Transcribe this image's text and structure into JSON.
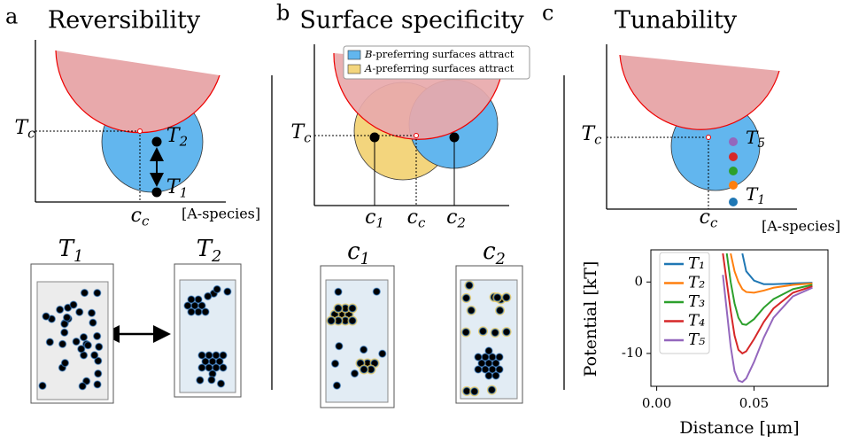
{
  "panels": [
    {
      "letter": "a",
      "title": "Reversibility",
      "critical_temperature": {
        "main": "T",
        "sub": "c"
      },
      "critical_concentration": {
        "main": "c",
        "sub": "c"
      },
      "x_axis_label": "[A-species]",
      "state_labels": [
        {
          "main": "T",
          "sub": "2"
        },
        {
          "main": "T",
          "sub": "1"
        }
      ],
      "snapshot_labels": [
        {
          "main": "T",
          "sub": "1"
        },
        {
          "main": "T",
          "sub": "2"
        }
      ]
    },
    {
      "letter": "b",
      "title": "Surface specificity",
      "legend": [
        {
          "italic": "B",
          "text": "-preferring surfaces attract"
        },
        {
          "italic": "A",
          "text": "-preferring surfaces attract"
        }
      ],
      "critical_temperature": {
        "main": "T",
        "sub": "c"
      },
      "concentration_labels": [
        {
          "main": "c",
          "sub": "1"
        },
        {
          "main": "c",
          "sub": "c"
        },
        {
          "main": "c",
          "sub": "2"
        }
      ],
      "snapshot_labels": [
        {
          "main": "c",
          "sub": "1"
        },
        {
          "main": "c",
          "sub": "2"
        }
      ]
    },
    {
      "letter": "c",
      "title": "Tunability",
      "critical_temperature": {
        "main": "T",
        "sub": "c"
      },
      "critical_concentration": {
        "main": "c",
        "sub": "c"
      },
      "x_axis_label": "[A-species]",
      "state_labels": [
        {
          "main": "T",
          "sub": "5"
        },
        {
          "main": "T",
          "sub": "1"
        }
      ]
    }
  ],
  "chart_data": {
    "type": "line",
    "xlabel": "Distance [μm]",
    "ylabel": "Potential [kT]",
    "x": [
      0.034,
      0.036,
      0.038,
      0.04,
      0.042,
      0.044,
      0.046,
      0.05,
      0.055,
      0.06,
      0.07,
      0.08
    ],
    "series": [
      {
        "name": "T₁",
        "color": "#1f77b4",
        "values": [
          null,
          null,
          null,
          null,
          null,
          4,
          1.5,
          0.2,
          -0.3,
          -0.3,
          -0.2,
          -0.1
        ]
      },
      {
        "name": "T₂",
        "color": "#ff7f0e",
        "values": [
          null,
          null,
          4,
          1.5,
          0,
          -1,
          -1.4,
          -1.5,
          -1.2,
          -0.8,
          -0.4,
          -0.2
        ]
      },
      {
        "name": "T₃",
        "color": "#2ca02c",
        "values": [
          null,
          4,
          0,
          -3,
          -5,
          -5.9,
          -6,
          -5.2,
          -3.6,
          -2.4,
          -1,
          -0.4
        ]
      },
      {
        "name": "T₄",
        "color": "#d62728",
        "values": [
          4,
          0,
          -4,
          -7.5,
          -9.5,
          -10,
          -9.7,
          -8,
          -5.6,
          -3.7,
          -1.5,
          -0.6
        ]
      },
      {
        "name": "T₅",
        "color": "#9467bd",
        "values": [
          1,
          -4,
          -9,
          -12.5,
          -13.8,
          -14,
          -13.5,
          -11.2,
          -7.8,
          -5,
          -2,
          -0.8
        ]
      }
    ],
    "xlim": [
      -0.003,
      0.088
    ],
    "ylim": [
      -14.6,
      4.5
    ],
    "xticks": [
      {
        "value": 0,
        "label": "0.00"
      },
      {
        "value": 0.05,
        "label": "0.05"
      }
    ],
    "yticks": [
      -10,
      0
    ],
    "legend": "upper left",
    "grid": false
  }
}
